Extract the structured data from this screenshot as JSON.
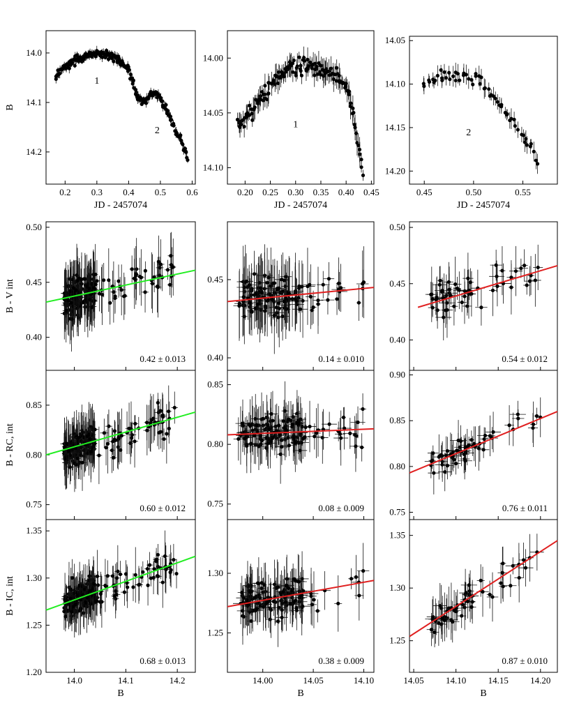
{
  "figure": {
    "colors": {
      "axis": "#000000",
      "point": "#000000",
      "fit_green": "#22ee22",
      "fit_red": "#e02020"
    }
  },
  "chart_data": [
    {
      "id": "lc-full",
      "type": "scatter",
      "xlabel": "JD - 2457074",
      "ylabel": "B",
      "xlim": [
        0.14,
        0.61
      ],
      "ylim": [
        14.265,
        13.955
      ],
      "yreversed": true,
      "xticks": [
        0.2,
        0.3,
        0.4,
        0.5,
        0.6
      ],
      "xtick_labels": [
        "0.2",
        "0.3",
        "0.4",
        "0.5",
        "0.6"
      ],
      "yticks": [
        14.0,
        14.1,
        14.2
      ],
      "ytick_labels": [
        "14.0",
        "14.1",
        "14.2"
      ],
      "segment_labels": [
        {
          "text": "1",
          "x": 0.3,
          "y": 14.055
        },
        {
          "text": "2",
          "x": 0.49,
          "y": 14.155
        }
      ],
      "trend": [
        [
          0.17,
          14.05
        ],
        [
          0.2,
          14.025
        ],
        [
          0.25,
          14.01
        ],
        [
          0.3,
          14.0
        ],
        [
          0.36,
          14.008
        ],
        [
          0.4,
          14.035
        ],
        [
          0.43,
          14.09
        ],
        [
          0.45,
          14.1
        ],
        [
          0.475,
          14.08
        ],
        [
          0.5,
          14.09
        ],
        [
          0.53,
          14.13
        ],
        [
          0.56,
          14.17
        ],
        [
          0.585,
          14.21
        ]
      ],
      "n_points": 230,
      "jitter": 0.006,
      "yerr": [
        0.004,
        0.01
      ],
      "xerr": 0
    },
    {
      "id": "lc-seg1",
      "type": "scatter",
      "xlabel": "JD - 2457074",
      "ylabel": "",
      "xlim": [
        0.165,
        0.455
      ],
      "ylim": [
        14.115,
        13.975
      ],
      "yreversed": true,
      "xticks": [
        0.2,
        0.25,
        0.3,
        0.35,
        0.4,
        0.45
      ],
      "xtick_labels": [
        "0.20",
        "0.25",
        "0.30",
        "0.35",
        "0.40",
        "0.45"
      ],
      "yticks": [
        14.0,
        14.05,
        14.1
      ],
      "ytick_labels": [
        "14.00",
        "14.05",
        "14.10"
      ],
      "segment_labels": [
        {
          "text": "1",
          "x": 0.3,
          "y": 14.06
        }
      ],
      "trend": [
        [
          0.185,
          14.063
        ],
        [
          0.2,
          14.055
        ],
        [
          0.22,
          14.045
        ],
        [
          0.25,
          14.025
        ],
        [
          0.28,
          14.012
        ],
        [
          0.31,
          14.006
        ],
        [
          0.34,
          14.01
        ],
        [
          0.37,
          14.015
        ],
        [
          0.39,
          14.02
        ],
        [
          0.405,
          14.03
        ],
        [
          0.415,
          14.055
        ],
        [
          0.425,
          14.08
        ],
        [
          0.432,
          14.105
        ]
      ],
      "n_points": 150,
      "jitter": 0.005,
      "yerr": [
        0.004,
        0.012
      ],
      "xerr": 0
    },
    {
      "id": "lc-seg2",
      "type": "scatter",
      "xlabel": "JD - 2457074",
      "ylabel": "",
      "xlim": [
        0.435,
        0.585
      ],
      "ylim": [
        14.215,
        14.045
      ],
      "yreversed": true,
      "xticks": [
        0.45,
        0.5,
        0.55
      ],
      "xtick_labels": [
        "0.45",
        "0.50",
        "0.55"
      ],
      "yticks": [
        14.05,
        14.1,
        14.15,
        14.2
      ],
      "ytick_labels": [
        "14.05",
        "14.10",
        "14.15",
        "14.20"
      ],
      "segment_labels": [
        {
          "text": "2",
          "x": 0.495,
          "y": 14.155
        }
      ],
      "trend": [
        [
          0.45,
          14.1
        ],
        [
          0.47,
          14.09
        ],
        [
          0.49,
          14.09
        ],
        [
          0.51,
          14.1
        ],
        [
          0.53,
          14.13
        ],
        [
          0.55,
          14.16
        ],
        [
          0.565,
          14.19
        ]
      ],
      "n_points": 60,
      "jitter": 0.005,
      "yerr": [
        0.004,
        0.012
      ],
      "xerr": 0
    },
    {
      "id": "bv-full",
      "type": "scatter",
      "xlabel": "",
      "ylabel": "B - V int",
      "xlim": [
        13.945,
        14.235
      ],
      "ylim": [
        0.37,
        0.505
      ],
      "xticks": [
        14.0,
        14.1,
        14.2
      ],
      "xtick_labels": [
        "",
        "",
        ""
      ],
      "yticks": [
        0.4,
        0.45,
        0.5
      ],
      "ytick_labels": [
        "0.40",
        "0.45",
        "0.50"
      ],
      "fit": {
        "x": [
          13.945,
          14.235
        ],
        "y": [
          0.432,
          0.461
        ],
        "color": "green"
      },
      "slope_text": "0.42 ± 0.013",
      "cloud": {
        "xr": [
          13.98,
          14.2
        ],
        "xdense": [
          13.98,
          14.04
        ],
        "dense_frac": 0.6,
        "n": 200,
        "sd": 0.012,
        "yerr": [
          0.008,
          0.03
        ],
        "xerr": [
          0.002,
          0.008
        ]
      }
    },
    {
      "id": "bv-seg1",
      "type": "scatter",
      "xlabel": "",
      "ylabel": "",
      "xlim": [
        13.965,
        14.11
      ],
      "ylim": [
        0.392,
        0.487
      ],
      "xticks": [
        14.0,
        14.05,
        14.1
      ],
      "xtick_labels": [
        "",
        "",
        ""
      ],
      "yticks": [
        0.4,
        0.45
      ],
      "ytick_labels": [
        "0.40",
        "0.45"
      ],
      "fit": {
        "x": [
          13.965,
          14.11
        ],
        "y": [
          0.436,
          0.445
        ],
        "color": "red"
      },
      "slope_text": "0.14 ± 0.010",
      "cloud": {
        "xr": [
          13.975,
          14.1
        ],
        "xdense": [
          13.98,
          14.04
        ],
        "dense_frac": 0.7,
        "n": 130,
        "sd": 0.009,
        "yerr": [
          0.008,
          0.025
        ],
        "xerr": [
          0.002,
          0.008
        ]
      }
    },
    {
      "id": "bv-seg2",
      "type": "scatter",
      "xlabel": "",
      "ylabel": "",
      "xlim": [
        14.045,
        14.22
      ],
      "ylim": [
        0.373,
        0.505
      ],
      "xticks": [
        14.05,
        14.1,
        14.15,
        14.2
      ],
      "xtick_labels": [
        "",
        "",
        "",
        ""
      ],
      "yticks": [
        0.4,
        0.45,
        0.5
      ],
      "ytick_labels": [
        "0.40",
        "0.45",
        "0.50"
      ],
      "fit": {
        "x": [
          14.055,
          14.22
        ],
        "y": [
          0.429,
          0.466
        ],
        "color": "red"
      },
      "slope_text": "0.54 ± 0.012",
      "cloud": {
        "xr": [
          14.07,
          14.2
        ],
        "xdense": [
          14.07,
          14.12
        ],
        "dense_frac": 0.4,
        "n": 55,
        "sd": 0.01,
        "yerr": [
          0.008,
          0.025
        ],
        "xerr": [
          0.003,
          0.01
        ]
      }
    },
    {
      "id": "br-full",
      "type": "scatter",
      "xlabel": "",
      "ylabel": "B - RC, int",
      "xlim": [
        13.945,
        14.235
      ],
      "ylim": [
        0.735,
        0.885
      ],
      "xticks": [
        14.0,
        14.1,
        14.2
      ],
      "xtick_labels": [
        "",
        "",
        ""
      ],
      "yticks": [
        0.75,
        0.8,
        0.85
      ],
      "ytick_labels": [
        "0.75",
        "0.80",
        "0.85"
      ],
      "fit": {
        "x": [
          13.945,
          14.235
        ],
        "y": [
          0.8,
          0.843
        ],
        "color": "green"
      },
      "slope_text": "0.60 ± 0.012",
      "cloud": {
        "xr": [
          13.98,
          14.2
        ],
        "xdense": [
          13.98,
          14.04
        ],
        "dense_frac": 0.6,
        "n": 200,
        "sd": 0.012,
        "yerr": [
          0.008,
          0.03
        ],
        "xerr": [
          0.002,
          0.008
        ]
      }
    },
    {
      "id": "br-seg1",
      "type": "scatter",
      "xlabel": "",
      "ylabel": "",
      "xlim": [
        13.965,
        14.11
      ],
      "ylim": [
        0.737,
        0.862
      ],
      "xticks": [
        14.0,
        14.05,
        14.1
      ],
      "xtick_labels": [
        "",
        "",
        ""
      ],
      "yticks": [
        0.75,
        0.8,
        0.85
      ],
      "ytick_labels": [
        "0.75",
        "0.80",
        "0.85"
      ],
      "fit": {
        "x": [
          13.965,
          14.11
        ],
        "y": [
          0.808,
          0.813
        ],
        "color": "red"
      },
      "slope_text": "0.08 ± 0.009",
      "cloud": {
        "xr": [
          13.975,
          14.1
        ],
        "xdense": [
          13.98,
          14.04
        ],
        "dense_frac": 0.7,
        "n": 130,
        "sd": 0.01,
        "yerr": [
          0.008,
          0.025
        ],
        "xerr": [
          0.002,
          0.008
        ]
      }
    },
    {
      "id": "br-seg2",
      "type": "scatter",
      "xlabel": "",
      "ylabel": "",
      "xlim": [
        14.045,
        14.22
      ],
      "ylim": [
        0.742,
        0.905
      ],
      "xticks": [
        14.05,
        14.1,
        14.15,
        14.2
      ],
      "xtick_labels": [
        "",
        "",
        "",
        ""
      ],
      "yticks": [
        0.75,
        0.8,
        0.85,
        0.9
      ],
      "ytick_labels": [
        "0.75",
        "0.80",
        "0.85",
        "0.90"
      ],
      "fit": {
        "x": [
          14.045,
          14.22
        ],
        "y": [
          0.793,
          0.86
        ],
        "color": "red"
      },
      "slope_text": "0.76 ± 0.011",
      "cloud": {
        "xr": [
          14.07,
          14.2
        ],
        "xdense": [
          14.07,
          14.12
        ],
        "dense_frac": 0.4,
        "n": 55,
        "sd": 0.009,
        "yerr": [
          0.008,
          0.025
        ],
        "xerr": [
          0.003,
          0.01
        ]
      }
    },
    {
      "id": "bi-full",
      "type": "scatter",
      "xlabel": "B",
      "ylabel": "B - IC, int",
      "xlim": [
        13.945,
        14.235
      ],
      "ylim": [
        1.2,
        1.362
      ],
      "xticks": [
        14.0,
        14.1,
        14.2
      ],
      "xtick_labels": [
        "14.0",
        "14.1",
        "14.2"
      ],
      "yticks": [
        1.2,
        1.25,
        1.3,
        1.35
      ],
      "ytick_labels": [
        "1.20",
        "1.25",
        "1.30",
        "1.35"
      ],
      "fit": {
        "x": [
          13.945,
          14.235
        ],
        "y": [
          1.266,
          1.323
        ],
        "color": "green"
      },
      "slope_text": "0.68 ± 0.013",
      "cloud": {
        "xr": [
          13.98,
          14.2
        ],
        "xdense": [
          13.98,
          14.04
        ],
        "dense_frac": 0.6,
        "n": 200,
        "sd": 0.012,
        "yerr": [
          0.008,
          0.03
        ],
        "xerr": [
          0.002,
          0.008
        ]
      }
    },
    {
      "id": "bi-seg1",
      "type": "scatter",
      "xlabel": "B",
      "ylabel": "",
      "xlim": [
        13.965,
        14.11
      ],
      "ylim": [
        1.217,
        1.345
      ],
      "xticks": [
        14.0,
        14.05,
        14.1
      ],
      "xtick_labels": [
        "14.00",
        "14.05",
        "14.10"
      ],
      "yticks": [
        1.25,
        1.3
      ],
      "ytick_labels": [
        "1.25",
        "1.30"
      ],
      "fit": {
        "x": [
          13.965,
          14.11
        ],
        "y": [
          1.272,
          1.294
        ],
        "color": "red"
      },
      "slope_text": "0.38 ± 0.009",
      "cloud": {
        "xr": [
          13.975,
          14.1
        ],
        "xdense": [
          13.98,
          14.04
        ],
        "dense_frac": 0.7,
        "n": 130,
        "sd": 0.012,
        "yerr": [
          0.008,
          0.025
        ],
        "xerr": [
          0.002,
          0.008
        ]
      }
    },
    {
      "id": "bi-seg2",
      "type": "scatter",
      "xlabel": "B",
      "ylabel": "",
      "xlim": [
        14.045,
        14.22
      ],
      "ylim": [
        1.22,
        1.365
      ],
      "xticks": [
        14.05,
        14.1,
        14.15,
        14.2
      ],
      "xtick_labels": [
        "14.05",
        "14.10",
        "14.15",
        "14.20"
      ],
      "yticks": [
        1.25,
        1.3,
        1.35
      ],
      "ytick_labels": [
        "1.25",
        "1.30",
        "1.35"
      ],
      "fit": {
        "x": [
          14.045,
          14.22
        ],
        "y": [
          1.254,
          1.345
        ],
        "color": "red"
      },
      "slope_text": "0.87 ± 0.010",
      "cloud": {
        "xr": [
          14.07,
          14.2
        ],
        "xdense": [
          14.07,
          14.12
        ],
        "dense_frac": 0.4,
        "n": 55,
        "sd": 0.009,
        "yerr": [
          0.008,
          0.025
        ],
        "xerr": [
          0.003,
          0.01
        ]
      }
    }
  ]
}
